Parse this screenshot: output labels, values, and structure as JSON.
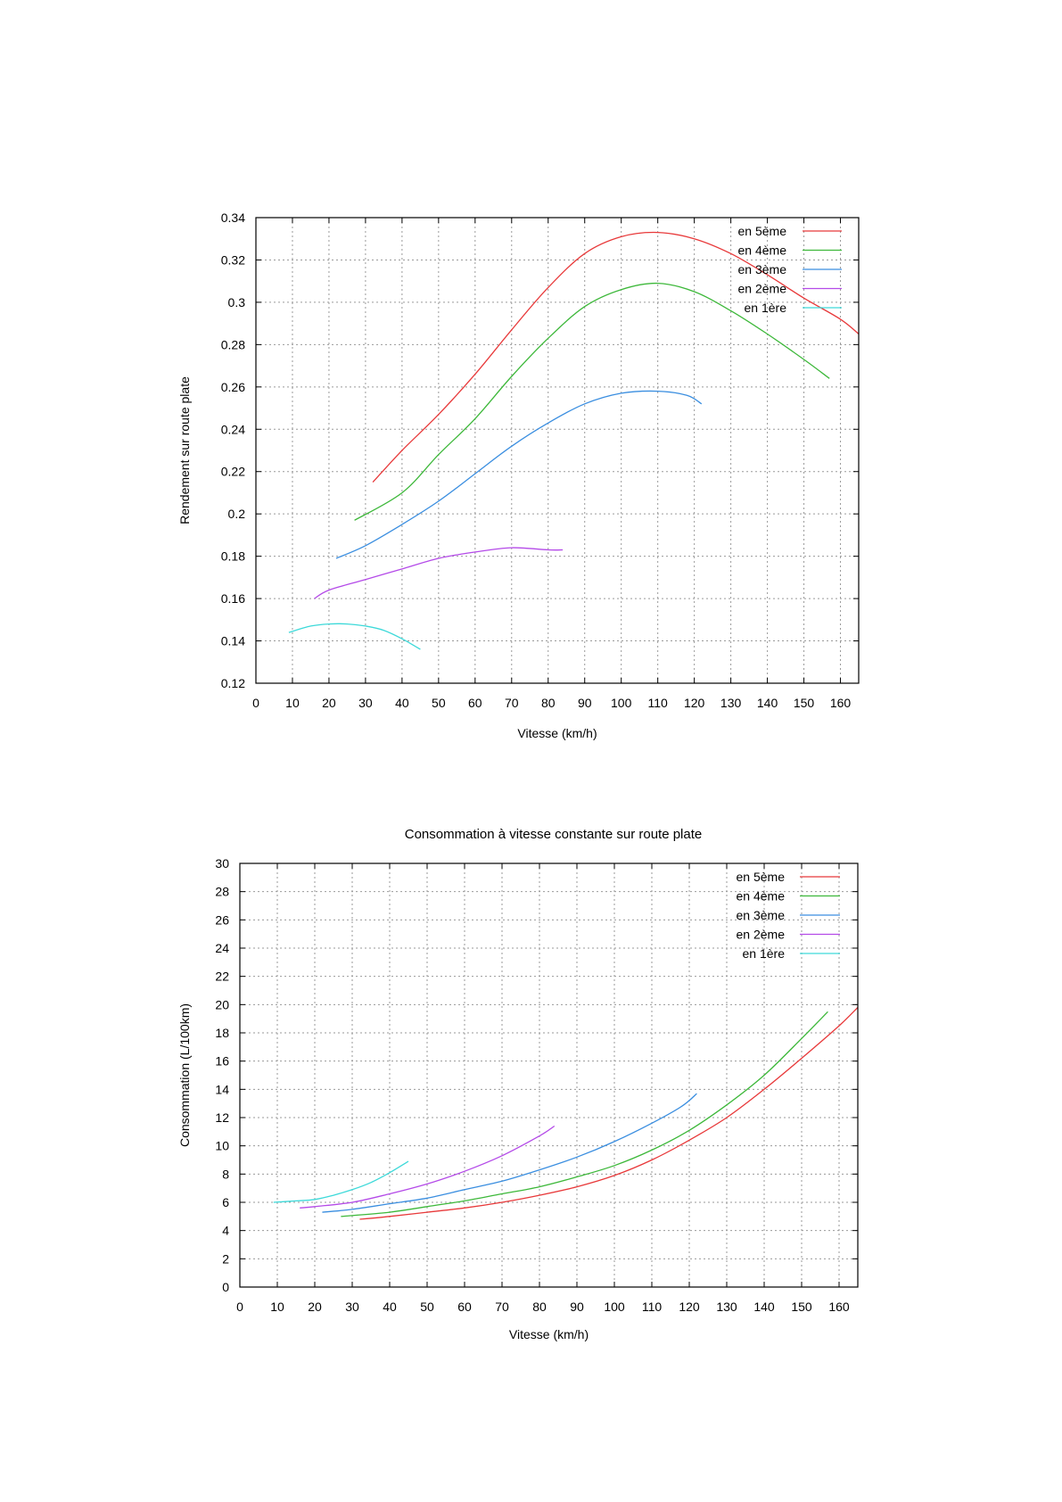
{
  "chart_data": [
    {
      "type": "line",
      "title": "",
      "xlabel": "Vitesse (km/h)",
      "ylabel": "Rendement sur route plate",
      "xlim": [
        0,
        165
      ],
      "ylim": [
        0.12,
        0.34
      ],
      "xticks": [
        0,
        10,
        20,
        30,
        40,
        50,
        60,
        70,
        80,
        90,
        100,
        110,
        120,
        130,
        140,
        150,
        160
      ],
      "yticks": [
        0.12,
        0.14,
        0.16,
        0.18,
        0.2,
        0.22,
        0.24,
        0.26,
        0.28,
        0.3,
        0.32,
        0.34
      ],
      "ytick_labels": [
        "0.12",
        "0.14",
        "0.16",
        "0.18",
        "0.2",
        "0.22",
        "0.24",
        "0.26",
        "0.28",
        "0.3",
        "0.32",
        "0.34"
      ],
      "grid": true,
      "legend_position": "top-right",
      "series": [
        {
          "name": "en 5ème",
          "color": "#e8393a",
          "x": [
            32,
            40,
            50,
            60,
            70,
            80,
            90,
            100,
            110,
            120,
            130,
            140,
            150,
            160,
            165
          ],
          "y": [
            0.215,
            0.23,
            0.247,
            0.266,
            0.287,
            0.307,
            0.323,
            0.331,
            0.333,
            0.33,
            0.323,
            0.313,
            0.302,
            0.292,
            0.285
          ]
        },
        {
          "name": "en 4ème",
          "color": "#3db83a",
          "x": [
            27,
            40,
            50,
            60,
            70,
            80,
            90,
            100,
            110,
            120,
            130,
            140,
            150,
            157
          ],
          "y": [
            0.197,
            0.21,
            0.228,
            0.245,
            0.265,
            0.283,
            0.298,
            0.306,
            0.309,
            0.305,
            0.296,
            0.285,
            0.273,
            0.264
          ]
        },
        {
          "name": "en 3ème",
          "color": "#3a8ee0",
          "x": [
            22,
            30,
            40,
            50,
            60,
            70,
            80,
            90,
            100,
            110,
            118,
            122
          ],
          "y": [
            0.179,
            0.185,
            0.195,
            0.206,
            0.219,
            0.232,
            0.243,
            0.252,
            0.257,
            0.258,
            0.256,
            0.252
          ]
        },
        {
          "name": "en 2ème",
          "color": "#b44ae8",
          "x": [
            16,
            20,
            30,
            40,
            50,
            60,
            70,
            80,
            84
          ],
          "y": [
            0.16,
            0.164,
            0.169,
            0.174,
            0.179,
            0.182,
            0.184,
            0.183,
            0.183
          ]
        },
        {
          "name": "en 1ère",
          "color": "#3dd9d9",
          "x": [
            9,
            15,
            20,
            25,
            30,
            35,
            40,
            45
          ],
          "y": [
            0.144,
            0.147,
            0.148,
            0.148,
            0.147,
            0.145,
            0.141,
            0.136
          ]
        }
      ]
    },
    {
      "type": "line",
      "title": "Consommation à vitesse constante sur route plate",
      "xlabel": "Vitesse (km/h)",
      "ylabel": "Consommation (L/100km)",
      "xlim": [
        0,
        165
      ],
      "ylim": [
        0,
        30
      ],
      "xticks": [
        0,
        10,
        20,
        30,
        40,
        50,
        60,
        70,
        80,
        90,
        100,
        110,
        120,
        130,
        140,
        150,
        160
      ],
      "yticks": [
        0,
        2,
        4,
        6,
        8,
        10,
        12,
        14,
        16,
        18,
        20,
        22,
        24,
        26,
        28,
        30
      ],
      "ytick_labels": [
        "0",
        "2",
        "4",
        "6",
        "8",
        "10",
        "12",
        "14",
        "16",
        "18",
        "20",
        "22",
        "24",
        "26",
        "28",
        "30"
      ],
      "grid": true,
      "legend_position": "top-right",
      "series": [
        {
          "name": "en 5ème",
          "color": "#e8393a",
          "x": [
            32,
            40,
            50,
            60,
            70,
            80,
            90,
            100,
            110,
            120,
            130,
            140,
            150,
            160,
            165
          ],
          "y": [
            4.8,
            5.0,
            5.3,
            5.6,
            6.0,
            6.5,
            7.1,
            7.9,
            9.0,
            10.4,
            12.0,
            14.0,
            16.2,
            18.5,
            19.8
          ]
        },
        {
          "name": "en 4ème",
          "color": "#3db83a",
          "x": [
            27,
            40,
            50,
            60,
            70,
            80,
            90,
            100,
            110,
            120,
            130,
            140,
            150,
            157
          ],
          "y": [
            5.0,
            5.3,
            5.7,
            6.1,
            6.6,
            7.1,
            7.8,
            8.6,
            9.7,
            11.1,
            12.9,
            15.0,
            17.6,
            19.5
          ]
        },
        {
          "name": "en 3ème",
          "color": "#3a8ee0",
          "x": [
            22,
            30,
            40,
            50,
            60,
            70,
            80,
            90,
            100,
            110,
            118,
            122
          ],
          "y": [
            5.3,
            5.5,
            5.9,
            6.3,
            6.9,
            7.5,
            8.3,
            9.2,
            10.3,
            11.6,
            12.8,
            13.7
          ]
        },
        {
          "name": "en 2ème",
          "color": "#b44ae8",
          "x": [
            16,
            20,
            30,
            40,
            50,
            60,
            70,
            80,
            84
          ],
          "y": [
            5.6,
            5.7,
            6.0,
            6.6,
            7.3,
            8.2,
            9.3,
            10.7,
            11.4
          ]
        },
        {
          "name": "en 1ère",
          "color": "#3dd9d9",
          "x": [
            9,
            15,
            20,
            25,
            30,
            35,
            40,
            45
          ],
          "y": [
            6.0,
            6.1,
            6.2,
            6.5,
            6.9,
            7.4,
            8.1,
            8.9
          ]
        }
      ]
    }
  ]
}
